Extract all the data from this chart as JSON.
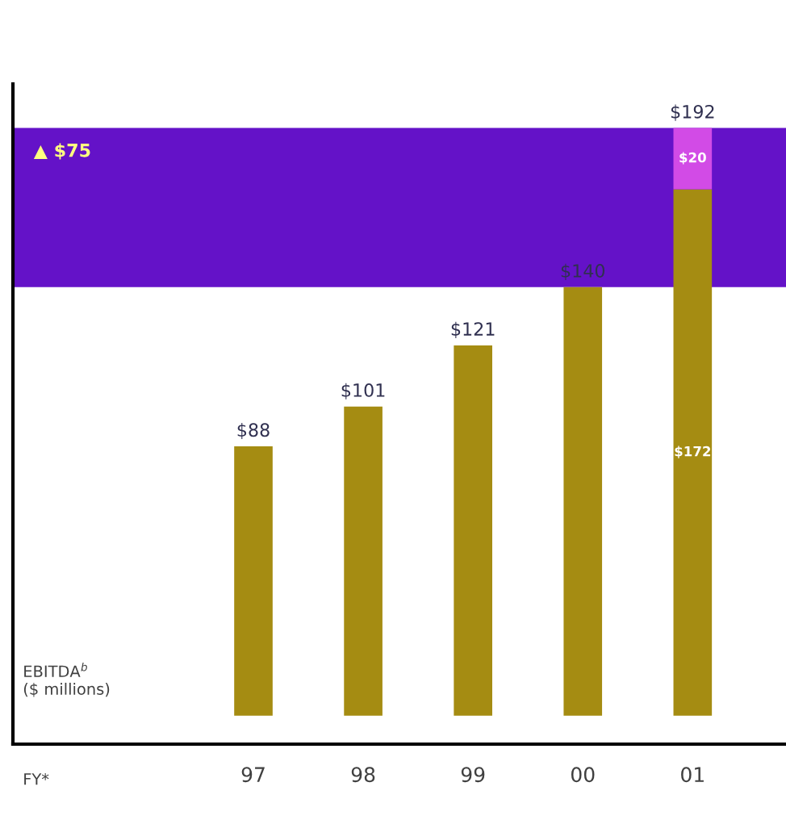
{
  "chart_data": {
    "type": "bar",
    "stacked": true,
    "annotations": [
      "EBITDA$^{b}$\n($ millions)",
      "FY*"
    ],
    "categories": [
      "97",
      "98",
      "99",
      "00",
      "01"
    ],
    "series": [
      {
        "color": "#a58c12",
        "values": [
          88,
          101,
          121,
          140,
          172
        ],
        "value_labels": [
          "$88",
          "$101",
          "$121",
          "$140",
          "$172"
        ]
      },
      {
        "color": "#d24be6",
        "values": [
          null,
          null,
          null,
          null,
          20
        ],
        "value_labels": [
          null,
          null,
          null,
          null,
          "$20"
        ]
      }
    ],
    "totals": [
      null,
      null,
      null,
      null,
      "$192"
    ],
    "bands": [
      {
        "axis": "y",
        "from": 140,
        "to": 192,
        "label": "▲ $75",
        "color": "#6412c8"
      }
    ],
    "grid": false,
    "legend": false
  }
}
